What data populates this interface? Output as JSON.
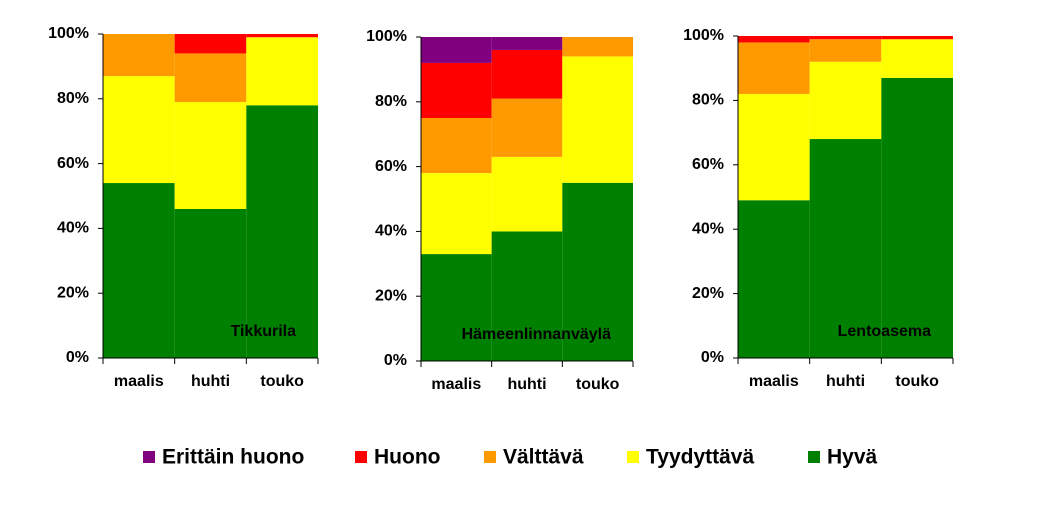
{
  "chart_data": [
    {
      "type": "bar",
      "stacked": true,
      "title": "Tikkurila",
      "categories": [
        "maalis",
        "huhti",
        "touko"
      ],
      "series": [
        {
          "name": "Erittäin huono",
          "color": "#800080",
          "values": [
            0,
            0,
            0
          ]
        },
        {
          "name": "Huono",
          "color": "#ff0000",
          "values": [
            0,
            6,
            1
          ]
        },
        {
          "name": "Välttävä",
          "color": "#ff9900",
          "values": [
            13,
            15,
            0
          ]
        },
        {
          "name": "Tyydyttävä",
          "color": "#ffff00",
          "values": [
            33,
            33,
            21
          ]
        },
        {
          "name": "Hyvä",
          "color": "#008000",
          "values": [
            54,
            46,
            78
          ]
        }
      ],
      "ylim": [
        0,
        100
      ],
      "yticks": [
        {
          "value": 0,
          "label": "0%"
        },
        {
          "value": 20,
          "label": "20%"
        },
        {
          "value": 40,
          "label": "40%"
        },
        {
          "value": 60,
          "label": "60%"
        },
        {
          "value": 80,
          "label": "80%"
        },
        {
          "value": 100,
          "label": "100%"
        }
      ]
    },
    {
      "type": "bar",
      "stacked": true,
      "title": "Hämeenlinnanväylä",
      "categories": [
        "maalis",
        "huhti",
        "touko"
      ],
      "series": [
        {
          "color": "#800080",
          "values": [
            8,
            4,
            0
          ]
        },
        {
          "color": "#ff0000",
          "values": [
            17,
            15,
            0
          ]
        },
        {
          "color": "#ff9900",
          "values": [
            17,
            18,
            6
          ]
        },
        {
          "color": "#ffff00",
          "values": [
            25,
            23,
            39
          ]
        },
        {
          "color": "#008000",
          "values": [
            33,
            40,
            55
          ]
        }
      ],
      "ylim": [
        0,
        100
      ],
      "yticks": [
        {
          "value": 0,
          "label": "0%"
        },
        {
          "value": 20,
          "label": "20%"
        },
        {
          "value": 40,
          "label": "40%"
        },
        {
          "value": 60,
          "label": "60%"
        },
        {
          "value": 80,
          "label": "80%"
        },
        {
          "value": 100,
          "label": "100%"
        }
      ]
    },
    {
      "type": "bar",
      "stacked": true,
      "title": "Lentoasema",
      "categories": [
        "maalis",
        "huhti",
        "touko"
      ],
      "series": [
        {
          "color": "#800080",
          "values": [
            0,
            0,
            0
          ]
        },
        {
          "color": "#ff0000",
          "values": [
            2,
            1,
            1
          ]
        },
        {
          "color": "#ff9900",
          "values": [
            16,
            7,
            0
          ]
        },
        {
          "color": "#ffff00",
          "values": [
            33,
            24,
            12
          ]
        },
        {
          "color": "#008000",
          "values": [
            49,
            68,
            87
          ]
        }
      ],
      "ylim": [
        0,
        100
      ],
      "yticks": [
        {
          "value": 0,
          "label": "0%"
        },
        {
          "value": 20,
          "label": "20%"
        },
        {
          "value": 40,
          "label": "40%"
        },
        {
          "value": 60,
          "label": "60%"
        },
        {
          "value": 80,
          "label": "80%"
        },
        {
          "value": 100,
          "label": "100%"
        }
      ]
    }
  ]
}
